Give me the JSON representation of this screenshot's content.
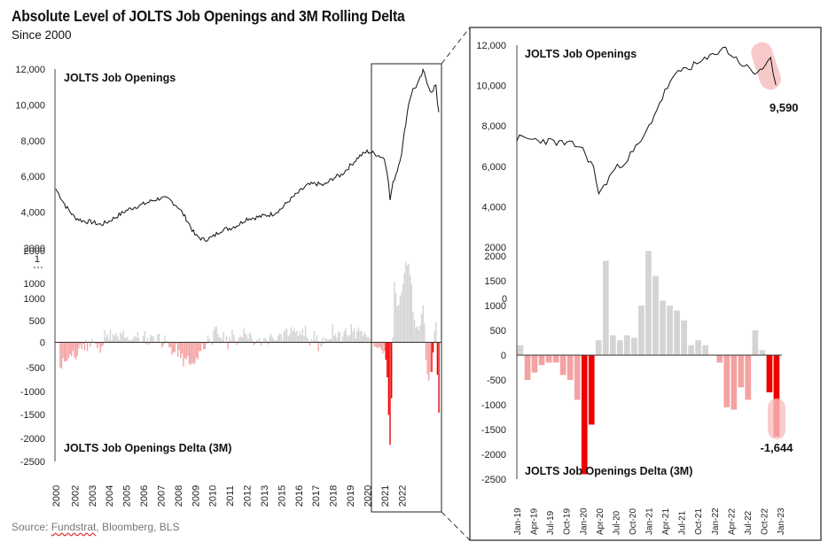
{
  "header": {
    "title": "Absolute Level of JOLTS Job Openings and 3M Rolling Delta",
    "subtitle": "Since 2000"
  },
  "footer": {
    "source_prefix": "Source: ",
    "source_underlined": "Fundstrat",
    "source_rest": ", Bloomberg, BLS"
  },
  "colors": {
    "line": "#111111",
    "positive_bar": "#d4d4d4",
    "negative_bar_light": "#f4a2a2",
    "negative_bar_recent": "#ee0000",
    "highlight": "#f7c0c0",
    "frame": "#222222"
  },
  "chart_data": [
    {
      "type": "line",
      "panel": "Left top",
      "label": "JOLTS Job Openings",
      "ylim": [
        2000,
        12000
      ],
      "yticks": [
        "12,000",
        "10,000",
        "8,000",
        "6,000",
        "4,000",
        "2000"
      ],
      "xlim": [
        2000.9,
        2023.2
      ],
      "x": [
        2000.9,
        2001.5,
        2002.0,
        2002.5,
        2003.0,
        2003.5,
        2004.0,
        2004.5,
        2005.0,
        2005.5,
        2006.0,
        2006.5,
        2007.0,
        2007.5,
        2008.0,
        2008.5,
        2009.0,
        2009.5,
        2010.0,
        2010.5,
        2011.0,
        2011.5,
        2012.0,
        2012.5,
        2013.0,
        2013.5,
        2014.0,
        2014.5,
        2015.0,
        2015.5,
        2016.0,
        2016.5,
        2017.0,
        2017.5,
        2018.0,
        2018.5,
        2019.0,
        2019.5,
        2020.0,
        2020.2,
        2020.3,
        2020.5,
        2020.75,
        2021.0,
        2021.2,
        2021.4,
        2021.6,
        2021.8,
        2022.0,
        2022.25,
        2022.5,
        2022.75,
        2023.0,
        2023.1
      ],
      "y": [
        5300,
        4300,
        3700,
        3500,
        3450,
        3300,
        3500,
        3800,
        4100,
        4300,
        4450,
        4650,
        4800,
        4700,
        4300,
        3600,
        2700,
        2450,
        2600,
        3000,
        3100,
        3300,
        3650,
        3700,
        3800,
        3900,
        4200,
        4700,
        5100,
        5500,
        5600,
        5500,
        5900,
        6100,
        6600,
        7100,
        7400,
        7250,
        7000,
        6000,
        4600,
        5700,
        6400,
        7400,
        8800,
        10100,
        10800,
        11000,
        11300,
        11900,
        11200,
        10600,
        11200,
        9590
      ],
      "labels": {
        "last": "9,590"
      }
    },
    {
      "type": "bar",
      "panel": "Left bottom",
      "label": "JOLTS Job Openings Delta (3M)",
      "ylim": [
        -2500,
        2000
      ],
      "yticks": [
        "2000",
        "1000",
        "1000",
        "500",
        "0",
        "-500",
        "-1000",
        "-1500",
        "-2000",
        "-2500"
      ],
      "xticks": [
        "2000",
        "2002",
        "2003",
        "2004",
        "2005",
        "2006",
        "2007",
        "2008",
        "2009",
        "2010",
        "2011",
        "2012",
        "2013",
        "2015",
        "2016",
        "2017",
        "2018",
        "2019",
        "2020",
        "2021",
        "2022"
      ],
      "notes": "Monthly 3M change; deep red bars in 2020 and late 2022 reaching -2500 and -1,644"
    },
    {
      "type": "line",
      "panel": "Right top (zoom Jan-19 to Jan-23)",
      "label": "JOLTS Job Openings",
      "ylim": [
        2000,
        12000
      ],
      "yticks": [
        "12,000",
        "10,000",
        "8,000",
        "6,000",
        "4,000",
        "2000"
      ],
      "x": [
        "Jan-19",
        "Apr-19",
        "Jul-19",
        "Oct-19",
        "Jan-20",
        "Apr-20",
        "Jul-20",
        "Oct-20",
        "Jan-21",
        "Apr-21",
        "Jul-21",
        "Oct-21",
        "Jan-22",
        "Apr-22",
        "Jul-22",
        "Oct-22",
        "Jan-23"
      ],
      "last_value_label": "9,590"
    },
    {
      "type": "bar",
      "panel": "Right bottom (zoom Jan-19 to Jan-23)",
      "label": "JOLTS Job Openings Delta (3M)",
      "ylim": [
        -2500,
        2000
      ],
      "yticks": [
        "2000",
        "1500",
        "1000",
        "500",
        "0",
        "-500",
        "-1000",
        "-1500",
        "-2000",
        "-2500"
      ],
      "xticks": [
        "Jan-19",
        "Apr-19",
        "Jul-19",
        "Oct-19",
        "Jan-20",
        "Apr-20",
        "Jul-20",
        "Oct-20",
        "Jan-21",
        "Apr-21",
        "Jul-21",
        "Oct-21",
        "Jan-22",
        "Apr-22",
        "Jul-22",
        "Oct-22",
        "Jan-23"
      ],
      "values": [
        200,
        -500,
        -350,
        -200,
        -150,
        -150,
        -400,
        -500,
        -900,
        -2400,
        -1400,
        300,
        1900,
        400,
        300,
        400,
        350,
        1000,
        2100,
        1600,
        1100,
        1000,
        900,
        700,
        200,
        300,
        200,
        0,
        -150,
        -1050,
        -1100,
        -650,
        -900,
        500,
        100,
        -750,
        -1644
      ],
      "last_value_label": "-1,644"
    }
  ]
}
